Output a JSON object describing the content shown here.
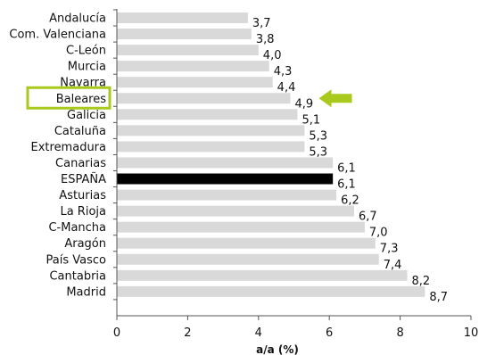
{
  "chart_data": {
    "type": "bar",
    "orientation": "horizontal",
    "title": "",
    "xlabel": "a/a (%)",
    "ylabel": "",
    "xlim": [
      0,
      10
    ],
    "x_ticks": [
      0,
      2,
      4,
      6,
      8,
      10
    ],
    "grid": false,
    "decimal_separator": ",",
    "categories": [
      "Andalucía",
      "Com. Valenciana",
      "C-León",
      "Murcia",
      "Navarra",
      "Baleares",
      "Galicia",
      "Cataluña",
      "Extremadura",
      "Canarias",
      "ESPAÑA",
      "Asturias",
      "La Rioja",
      "C-Mancha",
      "Aragón",
      "País Vasco",
      "Cantabria",
      "Madrid"
    ],
    "values": [
      3.7,
      3.8,
      4.0,
      4.3,
      4.4,
      4.9,
      5.1,
      5.3,
      5.3,
      6.1,
      6.1,
      6.2,
      6.7,
      7.0,
      7.3,
      7.4,
      8.2,
      8.7
    ],
    "highlight_category": "ESPAÑA",
    "annotated_category": "Baleares",
    "colors": {
      "bar": "#d9d9d9",
      "highlight_bar": "#000000",
      "annotation": "#a9c91c",
      "axis": "#555555"
    }
  }
}
